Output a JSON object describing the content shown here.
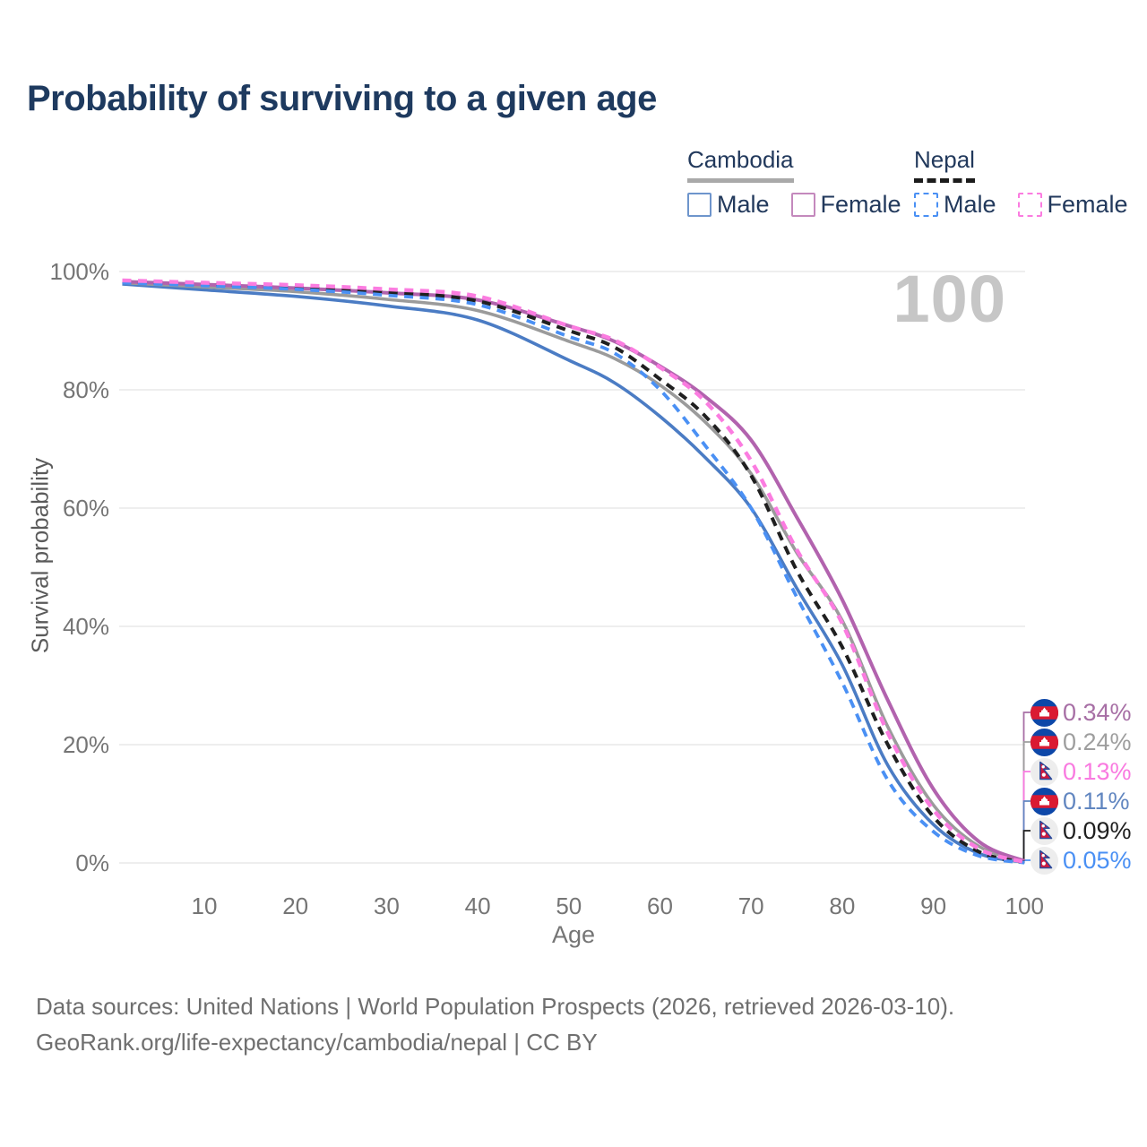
{
  "title": "Probability of surviving to a given age",
  "watermark": "100",
  "legend": {
    "groups": [
      {
        "label": "Cambodia",
        "line_style": "solid",
        "underline_color": "#a9a9a9",
        "items": [
          {
            "label": "Male",
            "color": "#6e95cc",
            "dash": "solid",
            "series_id": "cambodia-male"
          },
          {
            "label": "Female",
            "color": "#c489bd",
            "dash": "solid",
            "series_id": "cambodia-female"
          }
        ]
      },
      {
        "label": "Nepal",
        "line_style": "dashed",
        "underline_color": "#1c1c1c",
        "items": [
          {
            "label": "Male",
            "color": "#4a90f4",
            "dash": "dashed",
            "series_id": "nepal-male"
          },
          {
            "label": "Female",
            "color": "#fb7ce0",
            "dash": "dashed",
            "series_id": "nepal-female"
          }
        ]
      }
    ]
  },
  "end_labels": [
    {
      "value": "0.34%",
      "color": "#a76fa5",
      "flag": "cambodia",
      "series_id": "cambodia-female"
    },
    {
      "value": "0.24%",
      "color": "#9e9e9e",
      "flag": "cambodia",
      "series_id": "cambodia-both"
    },
    {
      "value": "0.13%",
      "color": "#f97ae0",
      "flag": "nepal",
      "series_id": "nepal-female"
    },
    {
      "value": "0.11%",
      "color": "#6186c0",
      "flag": "cambodia",
      "series_id": "cambodia-male"
    },
    {
      "value": "0.09%",
      "color": "#1f1f1f",
      "flag": "nepal",
      "series_id": "nepal-both"
    },
    {
      "value": "0.05%",
      "color": "#4a90f4",
      "flag": "nepal",
      "series_id": "nepal-male"
    }
  ],
  "footer": {
    "line1": "Data sources: United Nations | World Population Prospects (2026, retrieved 2026-03-10).",
    "line2": "GeoRank.org/life-expectancy/cambodia/nepal | CC BY"
  },
  "chart_data": {
    "type": "line",
    "title": "Probability of surviving to a given age",
    "xlabel": "Age",
    "ylabel": "Survival probability",
    "xlim": [
      0,
      100
    ],
    "ylim": [
      0,
      100
    ],
    "grid": "horizontal",
    "legend_position": "top-right",
    "x_ticks": [
      10,
      20,
      30,
      40,
      50,
      60,
      70,
      80,
      90,
      100
    ],
    "y_ticks": [
      {
        "label": "0%",
        "value": 0
      },
      {
        "label": "20%",
        "value": 20
      },
      {
        "label": "40%",
        "value": 40
      },
      {
        "label": "60%",
        "value": 60
      },
      {
        "label": "80%",
        "value": 80
      },
      {
        "label": "100%",
        "value": 100
      }
    ],
    "ages": [
      1,
      10,
      20,
      30,
      40,
      50,
      55,
      60,
      65,
      70,
      75,
      80,
      85,
      90,
      95,
      100
    ],
    "series": [
      {
        "id": "cambodia-male",
        "name": "Cambodia Male",
        "color": "#4b7cc4",
        "dash": "solid",
        "width": 3.6,
        "values": [
          97.9,
          96.9,
          95.8,
          94.2,
          91.8,
          85.0,
          81.2,
          75.5,
          68.5,
          60.0,
          46.5,
          33.5,
          16.5,
          6.5,
          1.6,
          0.11
        ]
      },
      {
        "id": "cambodia-both",
        "name": "Cambodia (both sexes)",
        "color": "#9b9b9b",
        "dash": "solid",
        "width": 3.6,
        "values": [
          98.1,
          97.4,
          96.6,
          95.3,
          93.4,
          88.2,
          85.3,
          80.8,
          74.5,
          65.8,
          52.5,
          41.0,
          23.0,
          9.8,
          2.8,
          0.24
        ]
      },
      {
        "id": "cambodia-female",
        "name": "Cambodia Female",
        "color": "#b263ae",
        "dash": "solid",
        "width": 4.0,
        "values": [
          98.3,
          97.8,
          97.2,
          96.4,
          95.2,
          90.8,
          88.2,
          84.0,
          78.8,
          71.5,
          58.5,
          44.5,
          27.5,
          12.5,
          3.6,
          0.34
        ]
      },
      {
        "id": "nepal-both",
        "name": "Nepal (both sexes)",
        "color": "#1f1f1f",
        "dash": "dashed",
        "width": 4.0,
        "values": [
          98.3,
          97.9,
          97.3,
          96.5,
          95.0,
          90.0,
          87.2,
          81.8,
          75.5,
          65.5,
          49.5,
          36.5,
          20.0,
          7.8,
          1.9,
          0.09
        ]
      },
      {
        "id": "nepal-male",
        "name": "Nepal Male",
        "color": "#4a90f4",
        "dash": "dashed",
        "width": 3.8,
        "values": [
          98.1,
          97.6,
          97.0,
          96.0,
          94.4,
          89.0,
          86.2,
          80.0,
          70.5,
          60.0,
          45.0,
          30.5,
          14.0,
          5.3,
          1.2,
          0.05
        ]
      },
      {
        "id": "nepal-female",
        "name": "Nepal Female",
        "color": "#fb7ce0",
        "dash": "dashed",
        "width": 4.4,
        "values": [
          98.5,
          98.1,
          97.7,
          97.0,
          95.8,
          90.8,
          88.4,
          83.8,
          78.0,
          68.0,
          53.0,
          40.5,
          22.0,
          9.0,
          2.4,
          0.13
        ]
      }
    ]
  }
}
